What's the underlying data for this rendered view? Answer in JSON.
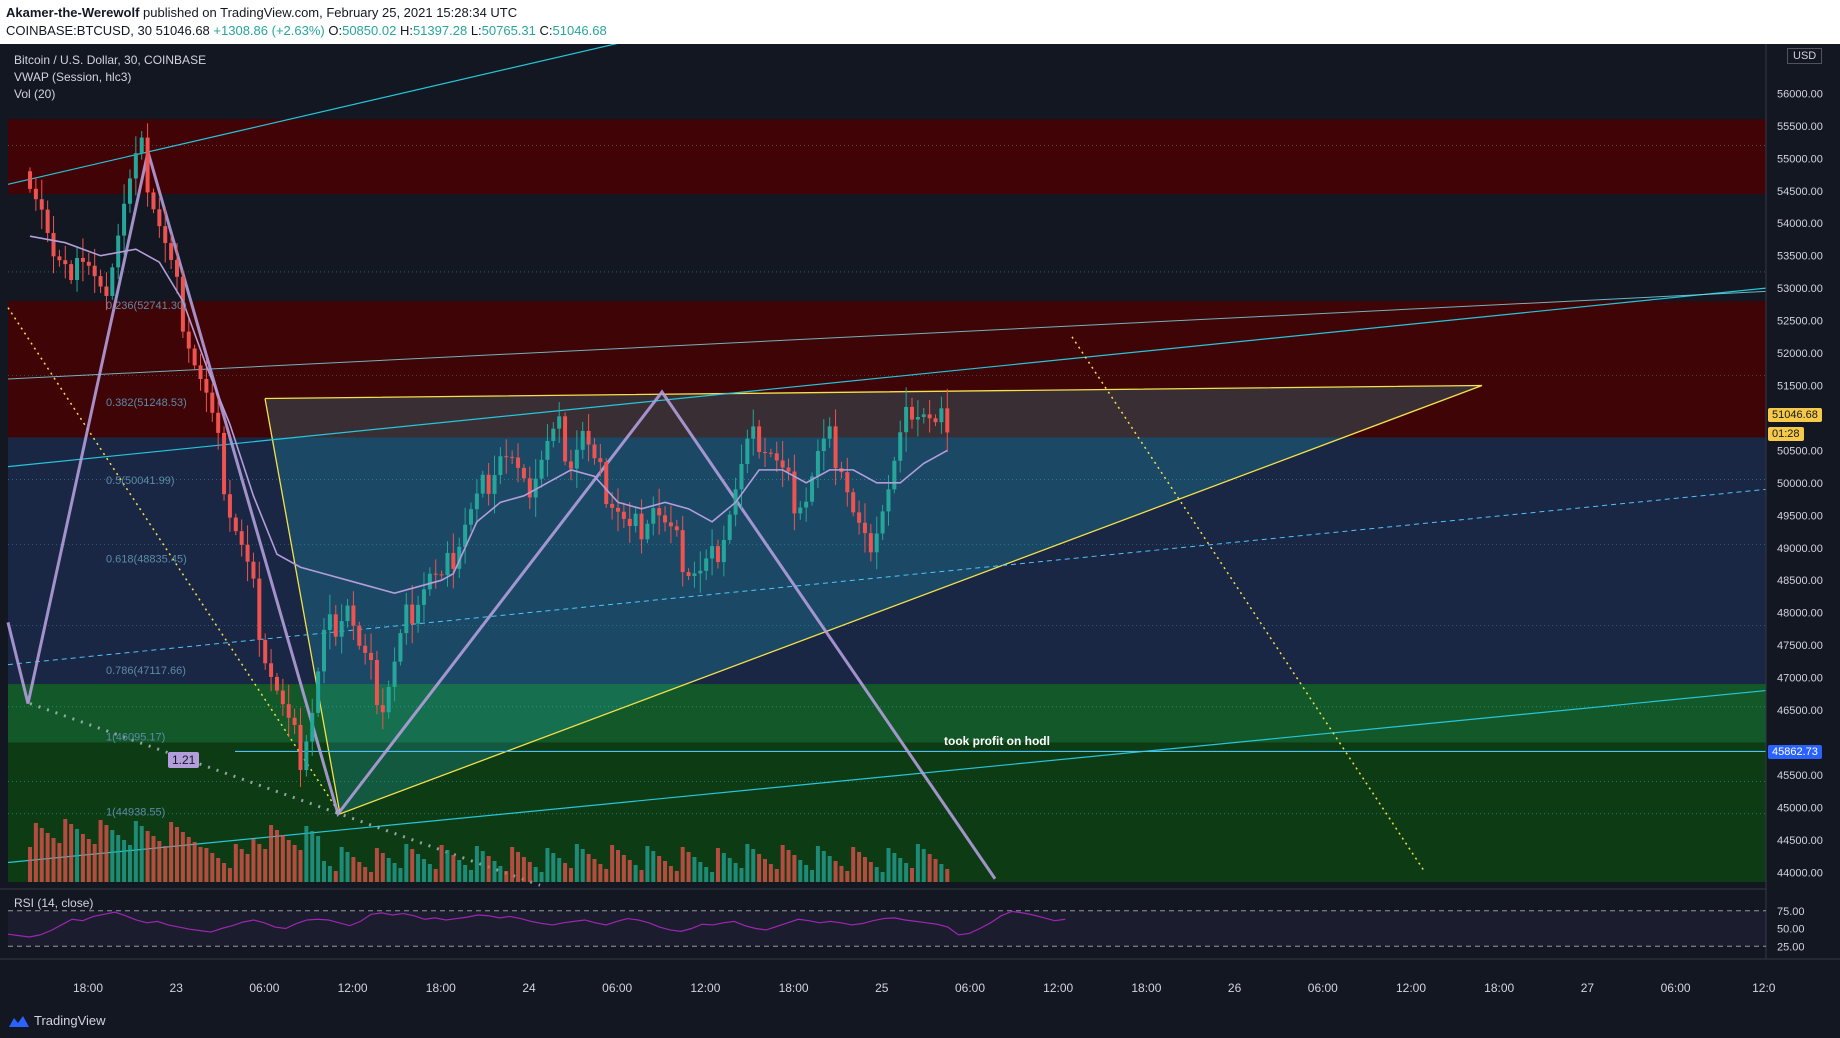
{
  "header": {
    "user": "Akamer-the-Werewolf",
    "published": "published on TradingView.com, February 25, 2021 15:28:34 UTC",
    "symbol_line": "COINBASE:BTCUSD, 30",
    "last": "51046.68",
    "change": "+1308.86 (+2.63%)",
    "o_label": "O:",
    "o": "50850.02",
    "h_label": "H:",
    "h": "51397.28",
    "l_label": "L:",
    "l": "50765.31",
    "c_label": "C:",
    "c": "51046.68"
  },
  "legend": {
    "title": "Bitcoin / U.S. Dollar, 30, COINBASE",
    "vwap": "VWAP (Session, hlc3)",
    "vol": "Vol (20)"
  },
  "rsi_label": "RSI (14, close)",
  "currency": "USD",
  "price_tag": "51046.68",
  "countdown": "01:28",
  "line_tag": "45862.73",
  "annotation": "took profit on hodl",
  "ratio_badge": "1.21",
  "footer": {
    "brand": "TradingView"
  },
  "colors": {
    "up": "#26a69a",
    "down": "#ef5350",
    "vwap": "#b39ddb",
    "rsi": "#9c27b0"
  },
  "chart_data": {
    "type": "candlestick",
    "y_axis_labels": [
      "56000.00",
      "55500.00",
      "55000.00",
      "54500.00",
      "54000.00",
      "53500.00",
      "53000.00",
      "52500.00",
      "52000.00",
      "51500.00",
      "50500.00",
      "50000.00",
      "49500.00",
      "49000.00",
      "48500.00",
      "48000.00",
      "47500.00",
      "47000.00",
      "46500.00",
      "45500.00",
      "45000.00",
      "44500.00",
      "44000.00"
    ],
    "ylim": [
      43850,
      56700
    ],
    "x_ticks": [
      "18:00",
      "23",
      "06:00",
      "12:00",
      "18:00",
      "24",
      "06:00",
      "12:00",
      "18:00",
      "25",
      "06:00",
      "12:00",
      "18:00",
      "26",
      "06:00",
      "12:00",
      "18:00",
      "27",
      "06:00",
      "12:0"
    ],
    "fib_labels": [
      "0.236(52741.30)",
      "0.382(51248.53)",
      "0.5(50041.99)",
      "0.618(48835.45)",
      "0.786(47117.66)",
      "1(46095.17)",
      "1(44938.55)"
    ],
    "rsi_axis": [
      "75.00",
      "50.00",
      "25.00"
    ],
    "rsi_range": [
      0,
      100
    ],
    "close_path": [
      [
        0,
        54800
      ],
      [
        2,
        54300
      ],
      [
        4,
        53400
      ],
      [
        6,
        53100
      ],
      [
        8,
        53600
      ],
      [
        10,
        53300
      ],
      [
        12,
        52800
      ],
      [
        14,
        53500
      ],
      [
        16,
        54300
      ],
      [
        18,
        54900
      ],
      [
        19,
        55050
      ],
      [
        20,
        54700
      ],
      [
        22,
        54000
      ],
      [
        24,
        53300
      ],
      [
        26,
        52600
      ],
      [
        28,
        51900
      ],
      [
        30,
        51300
      ],
      [
        32,
        50500
      ],
      [
        34,
        49600
      ],
      [
        36,
        49000
      ],
      [
        38,
        48300
      ],
      [
        40,
        47400
      ],
      [
        42,
        46800
      ],
      [
        44,
        46200
      ],
      [
        46,
        45800
      ],
      [
        48,
        46500
      ],
      [
        50,
        47600
      ],
      [
        52,
        47900
      ],
      [
        54,
        48200
      ],
      [
        56,
        47400
      ],
      [
        58,
        47000
      ],
      [
        60,
        46600
      ],
      [
        62,
        47200
      ],
      [
        64,
        47900
      ],
      [
        66,
        48300
      ],
      [
        68,
        48600
      ],
      [
        70,
        48400
      ],
      [
        72,
        48900
      ],
      [
        74,
        49400
      ],
      [
        76,
        49700
      ],
      [
        78,
        50100
      ],
      [
        80,
        50500
      ],
      [
        82,
        50300
      ],
      [
        84,
        49800
      ],
      [
        86,
        50200
      ],
      [
        88,
        50600
      ],
      [
        90,
        50800
      ],
      [
        92,
        50400
      ],
      [
        94,
        50800
      ],
      [
        96,
        50200
      ],
      [
        98,
        49900
      ],
      [
        100,
        49600
      ],
      [
        102,
        49200
      ],
      [
        104,
        49400
      ],
      [
        106,
        49700
      ],
      [
        108,
        49300
      ],
      [
        110,
        49000
      ],
      [
        112,
        48700
      ],
      [
        114,
        48600
      ],
      [
        116,
        48800
      ],
      [
        118,
        49300
      ],
      [
        120,
        49900
      ],
      [
        122,
        50500
      ],
      [
        124,
        50700
      ],
      [
        126,
        50500
      ],
      [
        128,
        50100
      ],
      [
        130,
        49800
      ],
      [
        132,
        49800
      ],
      [
        134,
        50400
      ],
      [
        136,
        50600
      ],
      [
        138,
        50300
      ],
      [
        140,
        49500
      ],
      [
        142,
        49000
      ],
      [
        144,
        49400
      ],
      [
        146,
        49900
      ],
      [
        148,
        50600
      ],
      [
        150,
        51200
      ],
      [
        152,
        51100
      ],
      [
        154,
        50800
      ],
      [
        156,
        51046
      ]
    ],
    "vwap_path": [
      [
        0,
        53800
      ],
      [
        6,
        53700
      ],
      [
        12,
        53500
      ],
      [
        18,
        53600
      ],
      [
        22,
        53400
      ],
      [
        26,
        52800
      ],
      [
        30,
        51800
      ],
      [
        34,
        50900
      ],
      [
        38,
        49800
      ],
      [
        42,
        48900
      ],
      [
        46,
        48700
      ],
      [
        50,
        48600
      ],
      [
        54,
        48500
      ],
      [
        58,
        48400
      ],
      [
        62,
        48300
      ],
      [
        66,
        48400
      ],
      [
        70,
        48500
      ],
      [
        72,
        48600
      ],
      [
        76,
        49400
      ],
      [
        80,
        49700
      ],
      [
        84,
        49800
      ],
      [
        88,
        50000
      ],
      [
        92,
        50200
      ],
      [
        96,
        50100
      ],
      [
        100,
        49700
      ],
      [
        104,
        49600
      ],
      [
        108,
        49700
      ],
      [
        112,
        49600
      ],
      [
        116,
        49400
      ],
      [
        120,
        49700
      ],
      [
        124,
        50200
      ],
      [
        128,
        50200
      ],
      [
        132,
        50000
      ],
      [
        136,
        50200
      ],
      [
        140,
        50200
      ],
      [
        144,
        50000
      ],
      [
        148,
        50000
      ],
      [
        152,
        50300
      ],
      [
        156,
        50500
      ]
    ],
    "rsi_path": [
      [
        0,
        42
      ],
      [
        4,
        40
      ],
      [
        8,
        38
      ],
      [
        12,
        41
      ],
      [
        16,
        47
      ],
      [
        20,
        55
      ],
      [
        24,
        63
      ],
      [
        28,
        61
      ],
      [
        32,
        67
      ],
      [
        36,
        70
      ],
      [
        40,
        73
      ],
      [
        44,
        68
      ],
      [
        48,
        62
      ],
      [
        52,
        58
      ],
      [
        56,
        60
      ],
      [
        60,
        55
      ],
      [
        64,
        52
      ],
      [
        68,
        49
      ],
      [
        72,
        47
      ],
      [
        76,
        45
      ],
      [
        80,
        50
      ],
      [
        84,
        54
      ],
      [
        88,
        59
      ],
      [
        92,
        62
      ],
      [
        96,
        58
      ],
      [
        100,
        52
      ],
      [
        104,
        50
      ],
      [
        108,
        57
      ],
      [
        112,
        62
      ],
      [
        116,
        63
      ],
      [
        120,
        62
      ],
      [
        124,
        58
      ],
      [
        128,
        54
      ],
      [
        132,
        60
      ],
      [
        136,
        70
      ],
      [
        140,
        72
      ],
      [
        144,
        69
      ],
      [
        148,
        71
      ],
      [
        152,
        68
      ],
      [
        156,
        63
      ],
      [
        160,
        65
      ],
      [
        164,
        62
      ],
      [
        168,
        64
      ],
      [
        172,
        66
      ],
      [
        176,
        69
      ],
      [
        180,
        68
      ],
      [
        184,
        65
      ],
      [
        188,
        67
      ],
      [
        192,
        64
      ],
      [
        196,
        60
      ],
      [
        200,
        57
      ],
      [
        204,
        55
      ],
      [
        208,
        58
      ],
      [
        212,
        60
      ],
      [
        216,
        62
      ],
      [
        220,
        58
      ],
      [
        224,
        55
      ],
      [
        228,
        60
      ],
      [
        232,
        64
      ],
      [
        236,
        62
      ],
      [
        240,
        58
      ],
      [
        244,
        52
      ],
      [
        248,
        48
      ],
      [
        252,
        46
      ],
      [
        256,
        50
      ],
      [
        260,
        56
      ],
      [
        264,
        55
      ],
      [
        268,
        58
      ],
      [
        272,
        60
      ],
      [
        276,
        54
      ],
      [
        280,
        50
      ],
      [
        284,
        48
      ],
      [
        288,
        53
      ],
      [
        292,
        58
      ],
      [
        296,
        63
      ],
      [
        300,
        61
      ],
      [
        304,
        58
      ],
      [
        308,
        60
      ],
      [
        312,
        58
      ],
      [
        316,
        55
      ],
      [
        320,
        57
      ],
      [
        324,
        61
      ],
      [
        328,
        64
      ],
      [
        332,
        65
      ],
      [
        336,
        62
      ],
      [
        340,
        60
      ],
      [
        344,
        58
      ],
      [
        348,
        56
      ],
      [
        352,
        52
      ],
      [
        356,
        41
      ],
      [
        360,
        43
      ],
      [
        364,
        50
      ],
      [
        368,
        58
      ],
      [
        372,
        68
      ],
      [
        376,
        74
      ],
      [
        380,
        72
      ],
      [
        384,
        69
      ],
      [
        388,
        65
      ],
      [
        392,
        61
      ],
      [
        396,
        63
      ]
    ]
  }
}
